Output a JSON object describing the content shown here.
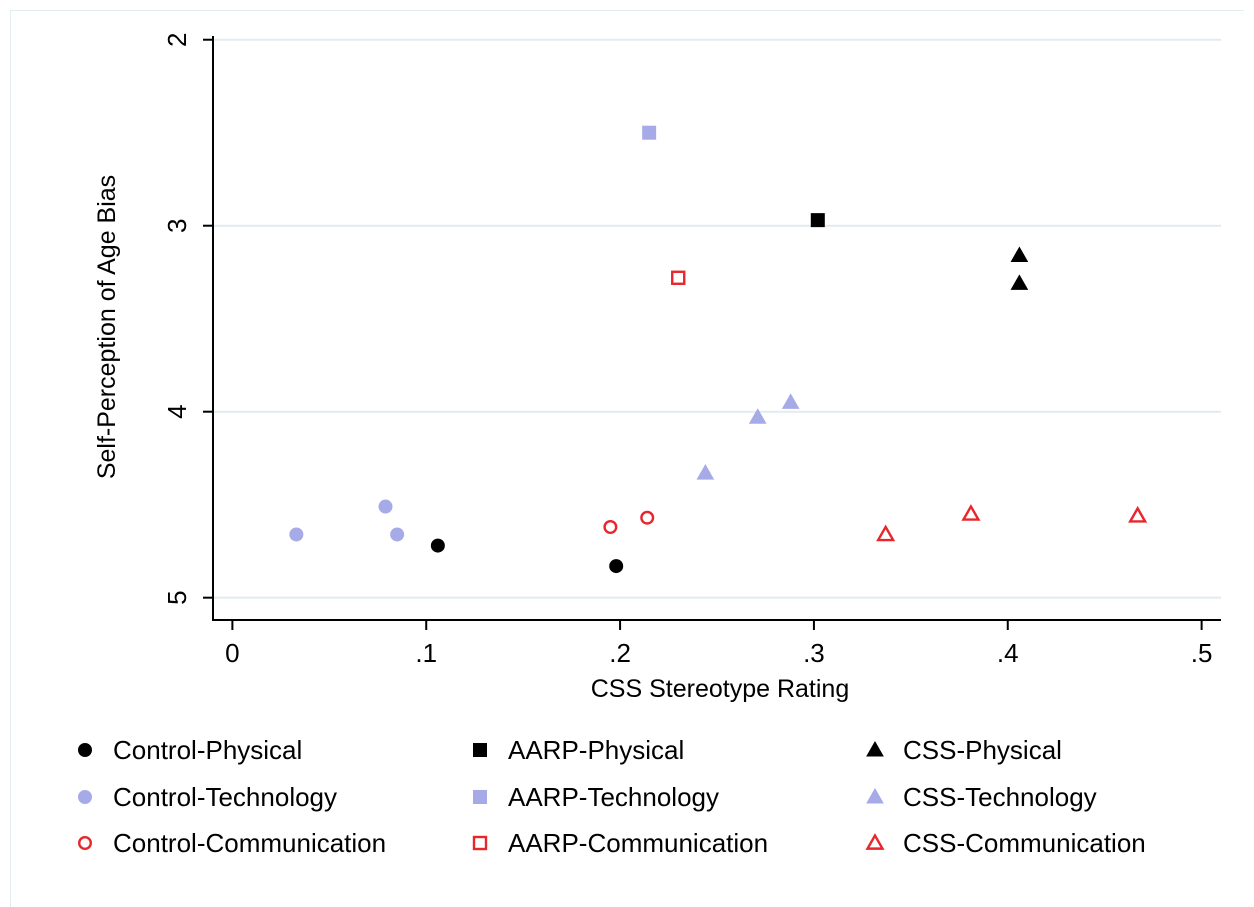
{
  "chart_data": {
    "type": "scatter",
    "xlabel": "CSS Stereotype Rating",
    "ylabel": "Self-Perception of Age Bias",
    "xlim": [
      -0.01,
      0.51
    ],
    "ylim": [
      5.12,
      1.98
    ],
    "y_reversed": true,
    "x_ticks": [
      0,
      0.1,
      0.2,
      0.3,
      0.4,
      0.5
    ],
    "x_tick_labels": [
      "0",
      ".1",
      ".2",
      ".3",
      ".4",
      ".5"
    ],
    "y_ticks": [
      2,
      3,
      4,
      5
    ],
    "y_tick_labels": [
      "2",
      "3",
      "4",
      "5"
    ],
    "grid": "horizontal",
    "legend_position": "bottom",
    "series": [
      {
        "name": "Control-Physical",
        "marker": "circle",
        "fill": true,
        "color": "#000000",
        "points": [
          {
            "x": 0.106,
            "y": 4.72
          },
          {
            "x": 0.198,
            "y": 4.83
          }
        ]
      },
      {
        "name": "AARP-Physical",
        "marker": "square",
        "fill": true,
        "color": "#000000",
        "points": [
          {
            "x": 0.302,
            "y": 2.97
          }
        ]
      },
      {
        "name": "CSS-Physical",
        "marker": "triangle",
        "fill": true,
        "color": "#000000",
        "points": [
          {
            "x": 0.406,
            "y": 3.16
          },
          {
            "x": 0.406,
            "y": 3.31
          }
        ]
      },
      {
        "name": "Control-Technology",
        "marker": "circle",
        "fill": true,
        "color": "#a6abe8",
        "points": [
          {
            "x": 0.033,
            "y": 4.66
          },
          {
            "x": 0.079,
            "y": 4.51
          },
          {
            "x": 0.085,
            "y": 4.66
          }
        ]
      },
      {
        "name": "AARP-Technology",
        "marker": "square",
        "fill": true,
        "color": "#a6abe8",
        "points": [
          {
            "x": 0.215,
            "y": 2.5
          }
        ]
      },
      {
        "name": "CSS-Technology",
        "marker": "triangle",
        "fill": true,
        "color": "#a6abe8",
        "points": [
          {
            "x": 0.244,
            "y": 4.33
          },
          {
            "x": 0.271,
            "y": 4.03
          },
          {
            "x": 0.288,
            "y": 3.95
          }
        ]
      },
      {
        "name": "Control-Communication",
        "marker": "circle",
        "fill": false,
        "color": "#e8262b",
        "points": [
          {
            "x": 0.195,
            "y": 4.62
          },
          {
            "x": 0.214,
            "y": 4.57
          }
        ]
      },
      {
        "name": "AARP-Communication",
        "marker": "square",
        "fill": false,
        "color": "#e8262b",
        "points": [
          {
            "x": 0.23,
            "y": 3.28
          }
        ]
      },
      {
        "name": "CSS-Communication",
        "marker": "triangle",
        "fill": false,
        "color": "#e8262b",
        "points": [
          {
            "x": 0.337,
            "y": 4.66
          },
          {
            "x": 0.381,
            "y": 4.55
          },
          {
            "x": 0.467,
            "y": 4.56
          }
        ]
      }
    ],
    "legend_columns": [
      [
        "Control-Physical",
        "Control-Technology",
        "Control-Communication"
      ],
      [
        "AARP-Physical",
        "AARP-Technology",
        "AARP-Communication"
      ],
      [
        "CSS-Physical",
        "CSS-Technology",
        "CSS-Communication"
      ]
    ],
    "colors": {
      "axis": "#000000",
      "grid": "#e2ecef",
      "frame": "#e3ecef"
    }
  }
}
